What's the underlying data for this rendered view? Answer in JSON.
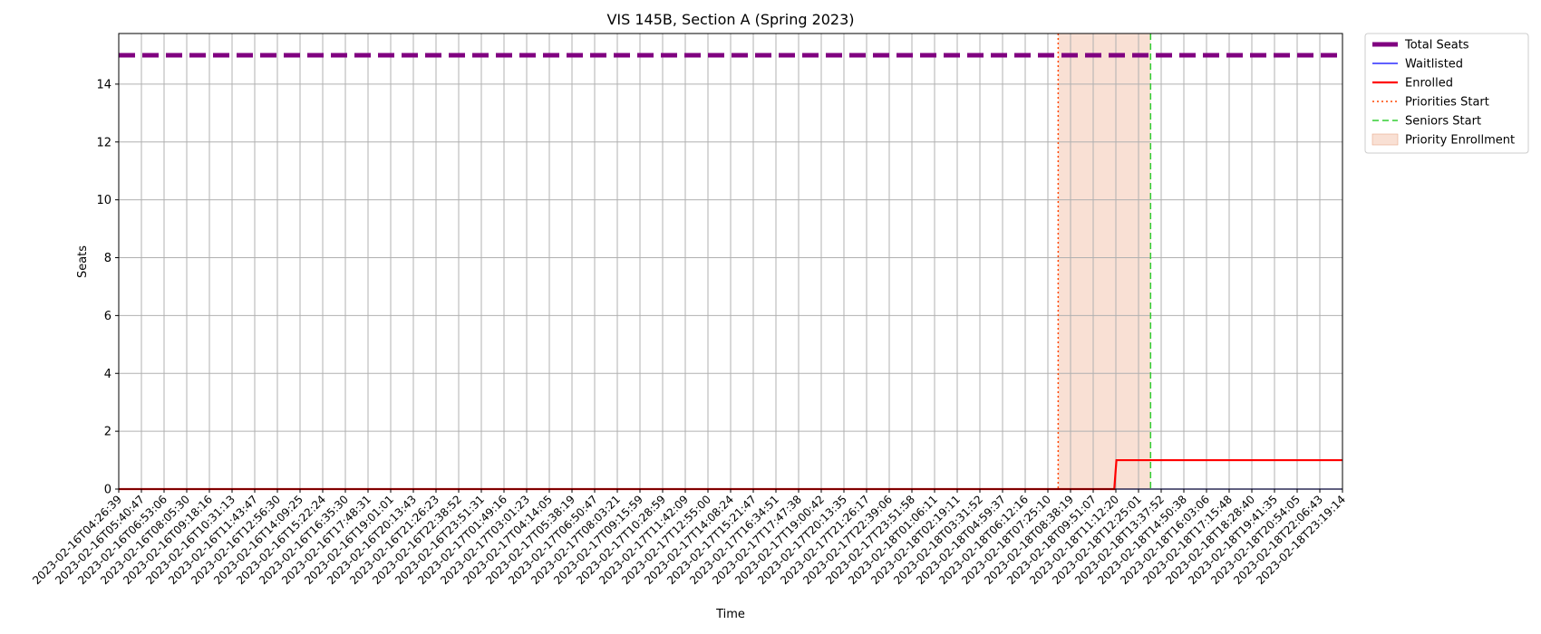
{
  "chart_data": {
    "type": "line",
    "title": "VIS 145B, Section A (Spring 2023)",
    "xlabel": "Time",
    "ylabel": "Seats",
    "ylim": [
      0,
      15.75
    ],
    "yticks": [
      0,
      2,
      4,
      6,
      8,
      10,
      12,
      14
    ],
    "grid": true,
    "legend_position": "outside-top-right",
    "x_tick_labels": [
      "2023-02-16T04:26:39",
      "2023-02-16T05:40:47",
      "2023-02-16T06:53:06",
      "2023-02-16T08:05:30",
      "2023-02-16T09:18:16",
      "2023-02-16T10:31:13",
      "2023-02-16T11:43:47",
      "2023-02-16T12:56:30",
      "2023-02-16T14:09:25",
      "2023-02-16T15:22:24",
      "2023-02-16T16:35:30",
      "2023-02-16T17:48:31",
      "2023-02-16T19:01:01",
      "2023-02-16T20:13:43",
      "2023-02-16T21:26:23",
      "2023-02-16T22:38:52",
      "2023-02-16T23:51:31",
      "2023-02-17T01:49:16",
      "2023-02-17T03:01:23",
      "2023-02-17T04:14:05",
      "2023-02-17T05:38:19",
      "2023-02-17T06:50:47",
      "2023-02-17T08:03:21",
      "2023-02-17T09:15:59",
      "2023-02-17T10:28:59",
      "2023-02-17T11:42:09",
      "2023-02-17T12:55:00",
      "2023-02-17T14:08:24",
      "2023-02-17T15:21:47",
      "2023-02-17T16:34:51",
      "2023-02-17T17:47:38",
      "2023-02-17T19:00:42",
      "2023-02-17T20:13:35",
      "2023-02-17T21:26:17",
      "2023-02-17T22:39:06",
      "2023-02-17T23:51:58",
      "2023-02-18T01:06:11",
      "2023-02-18T02:19:11",
      "2023-02-18T03:31:52",
      "2023-02-18T04:59:37",
      "2023-02-18T06:12:16",
      "2023-02-18T07:25:10",
      "2023-02-18T08:38:19",
      "2023-02-18T09:51:07",
      "2023-02-18T11:12:20",
      "2023-02-18T12:25:01",
      "2023-02-18T13:37:52",
      "2023-02-18T14:50:38",
      "2023-02-18T16:03:06",
      "2023-02-18T17:15:48",
      "2023-02-18T18:28:40",
      "2023-02-18T19:41:35",
      "2023-02-18T20:54:05",
      "2023-02-18T22:06:43",
      "2023-02-18T23:19:14"
    ],
    "series": [
      {
        "name": "Total Seats",
        "color": "#800080",
        "style": "dashed-thick",
        "values": [
          15,
          15
        ]
      },
      {
        "name": "Waitlisted",
        "color": "#0000ff",
        "style": "solid-thin",
        "values": [
          0,
          0
        ]
      },
      {
        "name": "Enrolled",
        "color": "#ff0000",
        "style": "solid",
        "points": [
          [
            "2023-02-16T04:26:39",
            0
          ],
          [
            "2023-02-18T10:51:00",
            0
          ],
          [
            "2023-02-18T10:58:00",
            1
          ],
          [
            "2023-02-18T23:19:14",
            1
          ]
        ]
      }
    ],
    "markers": [
      {
        "name": "Priorities Start",
        "color": "#ff4500",
        "style": "dotted",
        "x": "2023-02-18T07:47:00"
      },
      {
        "name": "Seniors Start",
        "color": "#32cd32",
        "style": "dashed",
        "x": "2023-02-18T12:50:00"
      }
    ],
    "shaded_regions": [
      {
        "name": "Priority Enrollment",
        "color": "#f4c6b0",
        "from": "2023-02-18T07:47:00",
        "to": "2023-02-18T12:50:00"
      }
    ],
    "legend": [
      "Total Seats",
      "Waitlisted",
      "Enrolled",
      "Priorities Start",
      "Seniors Start",
      "Priority Enrollment"
    ]
  }
}
